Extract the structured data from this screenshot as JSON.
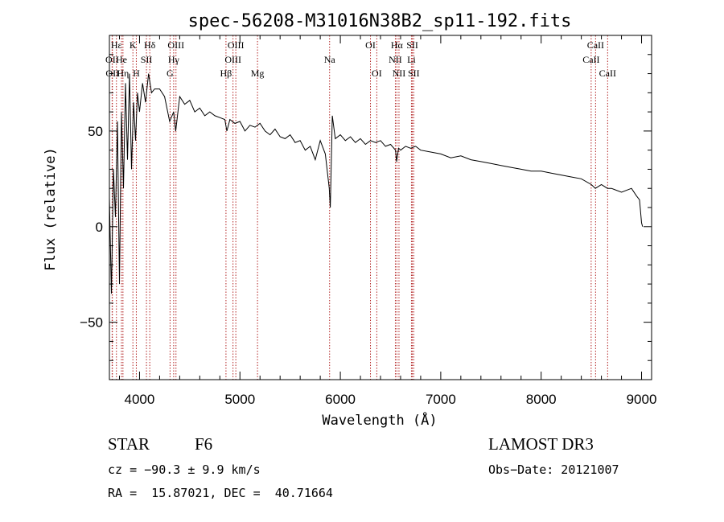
{
  "chart_data": {
    "type": "line",
    "title": "spec-56208-M31016N38B2_sp11-192.fits",
    "xlabel": "Wavelength (Å)",
    "ylabel": "Flux (relative)",
    "xlim": [
      3700,
      9100
    ],
    "ylim": [
      -80,
      100
    ],
    "xticks": [
      4000,
      5000,
      6000,
      7000,
      8000,
      9000
    ],
    "yticks": [
      -50,
      0,
      50
    ],
    "grid": false,
    "series": [
      {
        "name": "flux",
        "color": "#000000",
        "x": [
          3700,
          3720,
          3740,
          3760,
          3780,
          3800,
          3820,
          3840,
          3860,
          3880,
          3900,
          3920,
          3940,
          3960,
          3980,
          4000,
          4030,
          4060,
          4090,
          4120,
          4150,
          4200,
          4250,
          4300,
          4340,
          4360,
          4400,
          4450,
          4500,
          4550,
          4600,
          4650,
          4700,
          4750,
          4800,
          4850,
          4870,
          4900,
          4950,
          5000,
          5050,
          5100,
          5150,
          5200,
          5250,
          5300,
          5350,
          5400,
          5450,
          5500,
          5550,
          5600,
          5650,
          5700,
          5750,
          5800,
          5850,
          5890,
          5900,
          5920,
          5950,
          6000,
          6050,
          6100,
          6150,
          6200,
          6250,
          6300,
          6350,
          6400,
          6450,
          6500,
          6550,
          6560,
          6580,
          6600,
          6650,
          6700,
          6750,
          6800,
          6900,
          7000,
          7100,
          7200,
          7300,
          7400,
          7500,
          7600,
          7700,
          7800,
          7900,
          8000,
          8100,
          8200,
          8300,
          8400,
          8500,
          8540,
          8600,
          8660,
          8700,
          8800,
          8900,
          8950,
          8980,
          9000,
          9010
        ],
        "values": [
          15,
          -35,
          30,
          5,
          55,
          -30,
          60,
          20,
          75,
          35,
          80,
          30,
          65,
          45,
          70,
          60,
          75,
          65,
          80,
          70,
          72,
          72,
          68,
          55,
          60,
          50,
          68,
          64,
          66,
          60,
          62,
          58,
          60,
          58,
          57,
          56,
          50,
          56,
          54,
          55,
          50,
          53,
          52,
          54,
          50,
          48,
          51,
          47,
          46,
          48,
          44,
          45,
          40,
          42,
          35,
          45,
          38,
          20,
          10,
          58,
          46,
          48,
          45,
          47,
          44,
          46,
          43,
          45,
          44,
          45,
          42,
          43,
          40,
          34,
          41,
          40,
          42,
          41,
          42,
          40,
          39,
          38,
          36,
          37,
          35,
          34,
          33,
          32,
          31,
          30,
          29,
          29,
          28,
          27,
          26,
          25,
          22,
          20,
          22,
          20,
          20,
          18,
          20,
          16,
          14,
          2,
          0
        ]
      }
    ],
    "spectral_lines": [
      {
        "label": "Hε",
        "x": 3770,
        "row": 0
      },
      {
        "label": "K",
        "x": 3934,
        "row": 0
      },
      {
        "label": "Hδ",
        "x": 4102,
        "row": 0
      },
      {
        "label": "OIII",
        "x": 4363,
        "row": 0
      },
      {
        "label": "OIII",
        "x": 4959,
        "row": 0
      },
      {
        "label": "OI",
        "x": 6300,
        "row": 0
      },
      {
        "label": "Hα",
        "x": 6563,
        "row": 0
      },
      {
        "label": "SII",
        "x": 6717,
        "row": 0
      },
      {
        "label": "CaII",
        "x": 8542,
        "row": 0
      },
      {
        "label": "OII",
        "x": 3727,
        "row": 1
      },
      {
        "label": "He",
        "x": 3820,
        "row": 1
      },
      {
        "label": "SII",
        "x": 4069,
        "row": 1
      },
      {
        "label": "Hγ",
        "x": 4340,
        "row": 1
      },
      {
        "label": "OIII",
        "x": 4931,
        "row": 1
      },
      {
        "label": "Na",
        "x": 5893,
        "row": 1
      },
      {
        "label": "NII",
        "x": 6548,
        "row": 1
      },
      {
        "label": "Li",
        "x": 6708,
        "row": 1
      },
      {
        "label": "CaII",
        "x": 8498,
        "row": 1
      },
      {
        "label": "OII",
        "x": 3730,
        "row": 2
      },
      {
        "label": "Hη",
        "x": 3835,
        "row": 2
      },
      {
        "label": "H",
        "x": 3968,
        "row": 2
      },
      {
        "label": "G",
        "x": 4304,
        "row": 2
      },
      {
        "label": "Hβ",
        "x": 4861,
        "row": 2
      },
      {
        "label": "Mg",
        "x": 5175,
        "row": 2
      },
      {
        "label": "OI",
        "x": 6363,
        "row": 2
      },
      {
        "label": "NII",
        "x": 6584,
        "row": 2
      },
      {
        "label": "SII",
        "x": 6731,
        "row": 2
      },
      {
        "label": "CaII",
        "x": 8662,
        "row": 2
      }
    ],
    "line_color": "#b22222"
  },
  "info": {
    "object_class": "STAR",
    "subclass": "F6",
    "survey": "LAMOST DR3",
    "cz": "cz = −90.3 ± 9.9 km/s",
    "obs_date": "Obs−Date: 20121007",
    "coords": "RA =  15.87021, DEC =  40.71664"
  }
}
